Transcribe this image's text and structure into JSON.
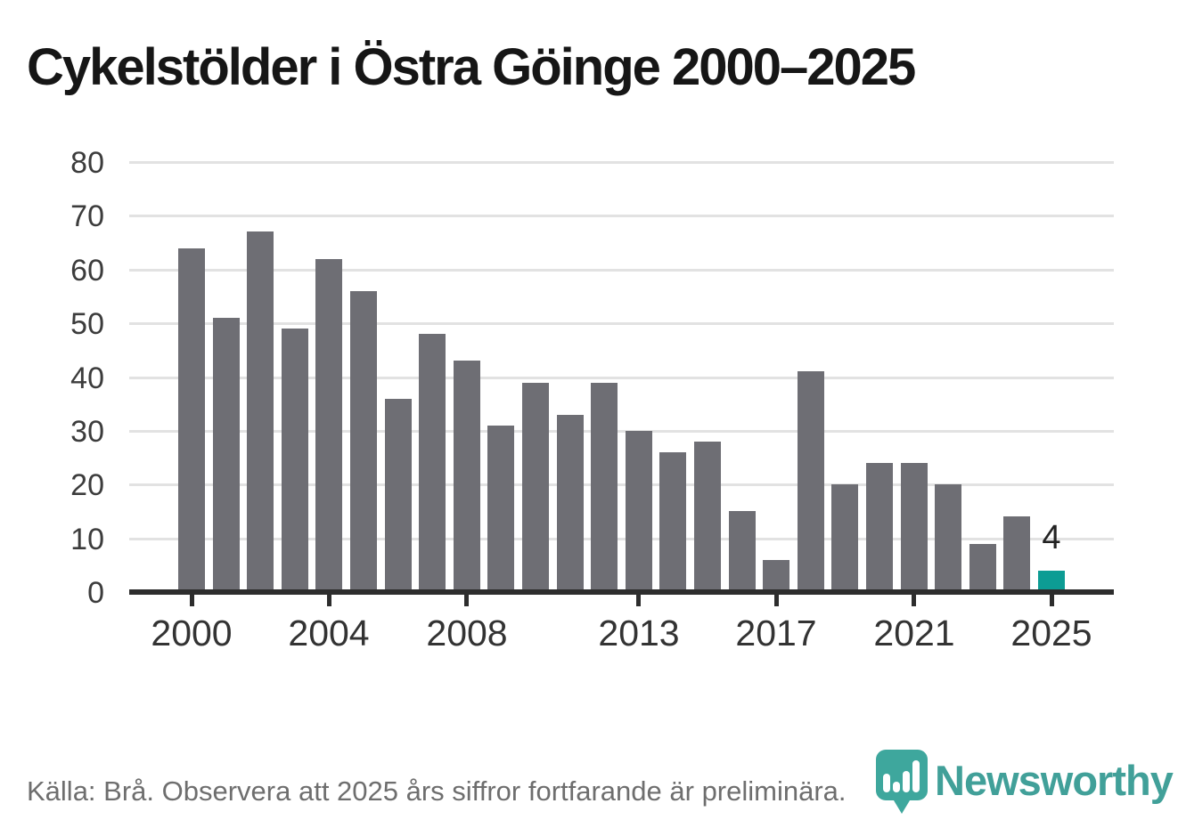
{
  "header": {
    "title": "Cykelstölder i Östra Göinge 2000–2025"
  },
  "chart_data": {
    "type": "bar",
    "title": "Cykelstölder i Östra Göinge 2000–2025",
    "categories": [
      2000,
      2001,
      2002,
      2003,
      2004,
      2005,
      2006,
      2007,
      2008,
      2009,
      2010,
      2011,
      2012,
      2013,
      2014,
      2015,
      2016,
      2017,
      2018,
      2019,
      2020,
      2021,
      2022,
      2023,
      2024,
      2025
    ],
    "values": [
      64,
      51,
      67,
      49,
      62,
      56,
      36,
      48,
      43,
      31,
      39,
      33,
      39,
      30,
      26,
      28,
      15,
      6,
      41,
      20,
      24,
      24,
      20,
      9,
      14,
      4
    ],
    "xlabel": "",
    "ylabel": "",
    "ylim": [
      0,
      80
    ],
    "y_ticks": [
      0,
      10,
      20,
      30,
      40,
      50,
      60,
      70,
      80
    ],
    "x_tick_labels": [
      2000,
      2004,
      2008,
      2013,
      2017,
      2021,
      2025
    ],
    "grid": "horizontal",
    "legend": "none",
    "bar_color": "#6e6e74",
    "highlight": {
      "category": 2025,
      "value": 4,
      "label": "4",
      "color": "#0d9c94"
    }
  },
  "footer": {
    "source_text": "Källa: Brå. Observera att 2025 års siffror fortfarande är preliminära.",
    "logo_text": "Newsworthy"
  },
  "colors": {
    "background": "#ffffff",
    "bar": "#6e6e74",
    "highlight": "#0d9c94",
    "gridline": "#e2e2e2",
    "axis": "#2d2d2d",
    "tick_label": "#3c3c3c",
    "title_text": "#161616",
    "source_text": "#6e6e6e",
    "logo_teal": "#41a099"
  }
}
